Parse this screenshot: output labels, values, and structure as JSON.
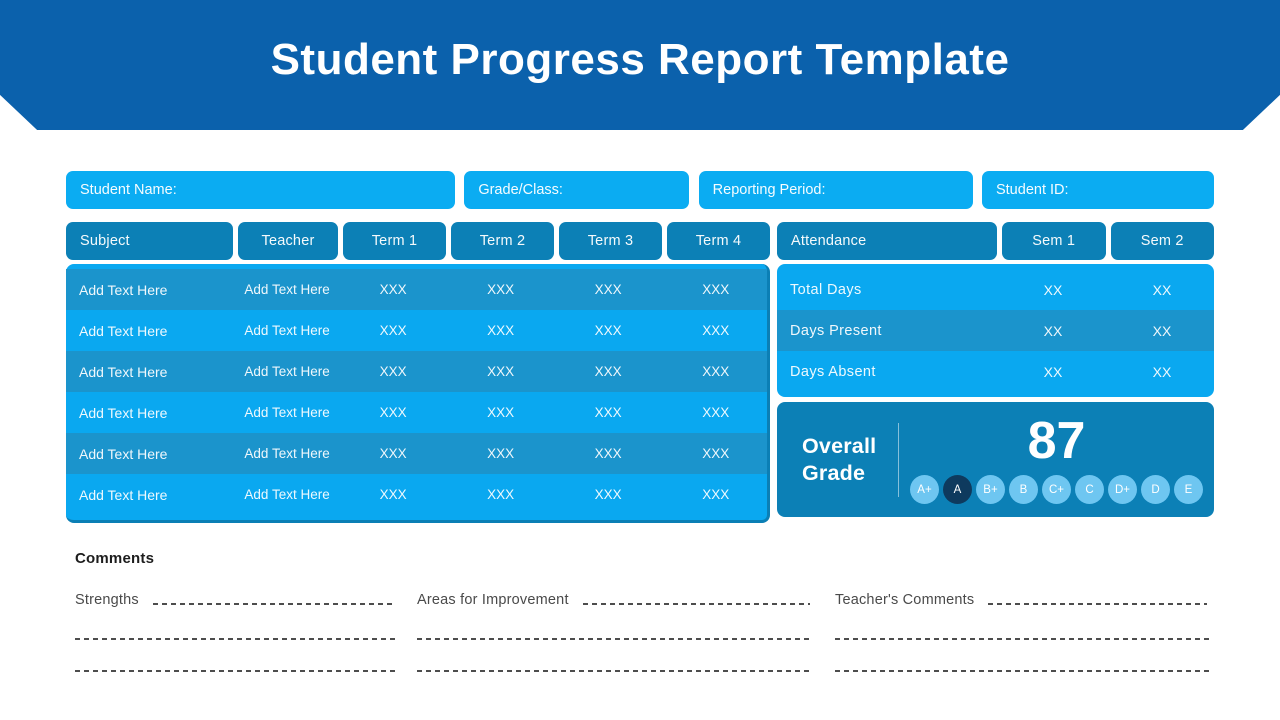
{
  "header": {
    "title": "Student Progress Report Template"
  },
  "fields": [
    {
      "label": "Student Name:"
    },
    {
      "label": "Grade/Class:"
    },
    {
      "label": "Reporting Period:"
    },
    {
      "label": "Student ID:"
    }
  ],
  "grades_table": {
    "headers": [
      "Subject",
      "Teacher",
      "Term 1",
      "Term 2",
      "Term 3",
      "Term 4"
    ],
    "rows": [
      [
        "Add Text Here",
        "Add Text Here",
        "XXX",
        "XXX",
        "XXX",
        "XXX"
      ],
      [
        "Add Text Here",
        "Add Text Here",
        "XXX",
        "XXX",
        "XXX",
        "XXX"
      ],
      [
        "Add Text Here",
        "Add Text Here",
        "XXX",
        "XXX",
        "XXX",
        "XXX"
      ],
      [
        "Add Text Here",
        "Add Text Here",
        "XXX",
        "XXX",
        "XXX",
        "XXX"
      ],
      [
        "Add Text Here",
        "Add Text Here",
        "XXX",
        "XXX",
        "XXX",
        "XXX"
      ],
      [
        "Add Text Here",
        "Add Text Here",
        "XXX",
        "XXX",
        "XXX",
        "XXX"
      ]
    ]
  },
  "attendance_table": {
    "headers": [
      "Attendance",
      "Sem 1",
      "Sem 2"
    ],
    "rows": [
      [
        "Total Days",
        "XX",
        "XX"
      ],
      [
        "Days Present",
        "XX",
        "XX"
      ],
      [
        "Days Absent",
        "XX",
        "XX"
      ]
    ]
  },
  "overall_grade": {
    "label": "Overall Grade",
    "score": "87",
    "selected": "A",
    "scale": [
      "A+",
      "A",
      "B+",
      "B",
      "C+",
      "C",
      "D+",
      "D",
      "E"
    ]
  },
  "comments": {
    "title": "Comments",
    "columns": [
      {
        "label": "Strengths"
      },
      {
        "label": "Areas for Improvement"
      },
      {
        "label": "Teacher's Comments"
      }
    ]
  },
  "colors": {
    "banner_blue": "#0B61AC",
    "field_cyan": "#0BACF2",
    "header_teal": "#0C80B6",
    "row_light": "#0AA8F0",
    "row_dark": "#1B94CC",
    "badge_light": "#6EC6F1",
    "badge_selected": "#0E3A5E"
  }
}
